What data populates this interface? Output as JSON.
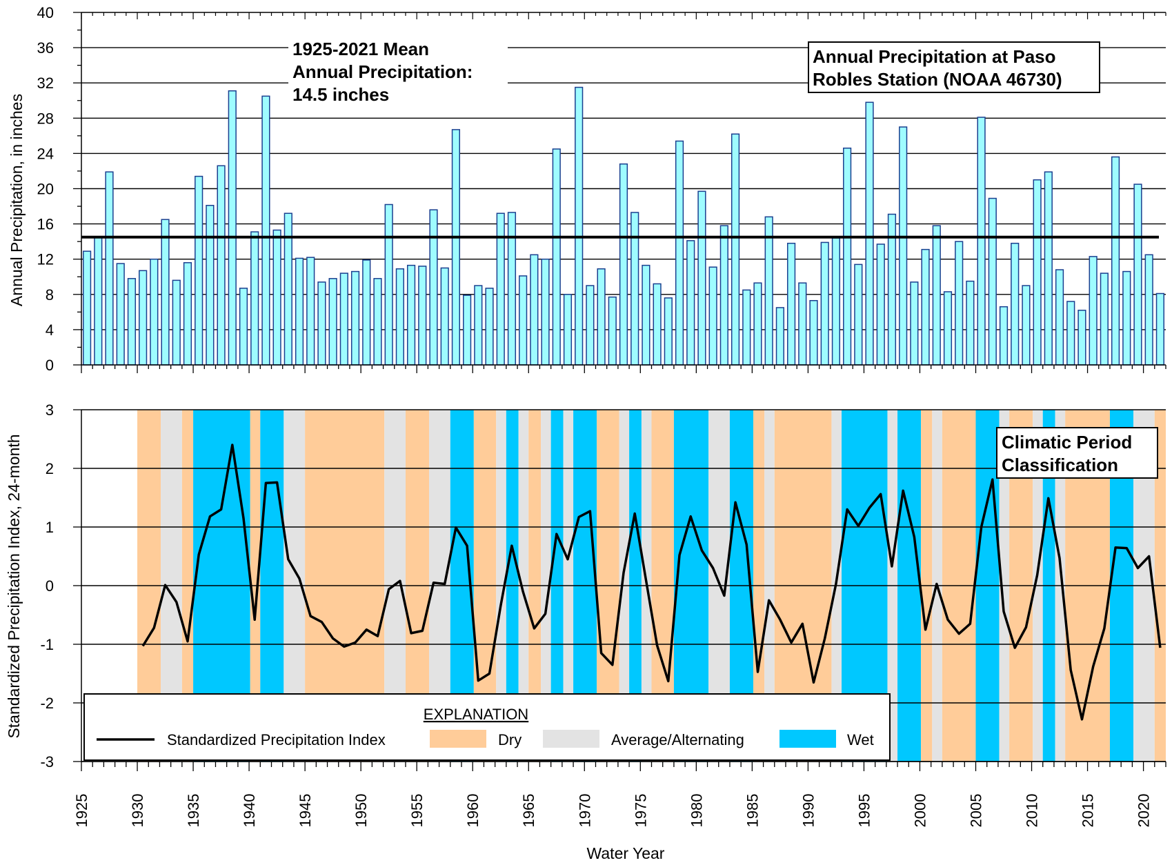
{
  "colors": {
    "bar_fill": "#9ffcff",
    "bar_stroke": "#1a3f8f",
    "mean_line": "#000000",
    "dry": "#ffcc99",
    "average": "#e3e3e3",
    "wet": "#00c8ff",
    "spi_line": "#000000"
  },
  "xlabel": "Water Year",
  "chart_data": [
    {
      "type": "bar",
      "title": "Annual Precipitation at Paso Robles Station (NOAA 46730)",
      "title_lines": [
        "Annual Precipitation at Paso",
        "Robles Station (NOAA 46730)"
      ],
      "ylabel": "Annual Precipitation, in inches",
      "ylim": [
        0,
        40
      ],
      "yticks": [
        0,
        4,
        8,
        12,
        16,
        20,
        24,
        28,
        32,
        36,
        40
      ],
      "grid": true,
      "x": [
        1925,
        1926,
        1927,
        1928,
        1929,
        1930,
        1931,
        1932,
        1933,
        1934,
        1935,
        1936,
        1937,
        1938,
        1939,
        1940,
        1941,
        1942,
        1943,
        1944,
        1945,
        1946,
        1947,
        1948,
        1949,
        1950,
        1951,
        1952,
        1953,
        1954,
        1955,
        1956,
        1957,
        1958,
        1959,
        1960,
        1961,
        1962,
        1963,
        1964,
        1965,
        1966,
        1967,
        1968,
        1969,
        1970,
        1971,
        1972,
        1973,
        1974,
        1975,
        1976,
        1977,
        1978,
        1979,
        1980,
        1981,
        1982,
        1983,
        1984,
        1985,
        1986,
        1987,
        1988,
        1989,
        1990,
        1991,
        1992,
        1993,
        1994,
        1995,
        1996,
        1997,
        1998,
        1999,
        2000,
        2001,
        2002,
        2003,
        2004,
        2005,
        2006,
        2007,
        2008,
        2009,
        2010,
        2011,
        2012,
        2013,
        2014,
        2015,
        2016,
        2017,
        2018,
        2019,
        2020,
        2021
      ],
      "values": [
        12.9,
        14.5,
        21.9,
        11.5,
        9.8,
        10.7,
        12.0,
        16.5,
        9.6,
        11.6,
        21.4,
        18.1,
        22.6,
        31.1,
        8.7,
        15.1,
        30.5,
        15.3,
        17.2,
        12.1,
        12.2,
        9.4,
        9.8,
        10.4,
        10.6,
        11.9,
        9.8,
        18.2,
        10.9,
        11.3,
        11.2,
        17.6,
        11.0,
        26.7,
        7.9,
        9.0,
        8.7,
        17.2,
        17.3,
        10.1,
        12.5,
        12.0,
        24.5,
        8.0,
        31.5,
        9.0,
        10.9,
        7.7,
        22.8,
        17.3,
        11.3,
        9.2,
        7.6,
        25.4,
        14.1,
        19.7,
        11.1,
        15.8,
        26.2,
        8.5,
        9.3,
        16.8,
        6.5,
        13.8,
        9.3,
        7.3,
        13.9,
        14.4,
        24.6,
        11.4,
        29.8,
        13.7,
        17.1,
        27.0,
        9.4,
        13.1,
        15.8,
        8.3,
        14.0,
        9.5,
        28.1,
        18.9,
        6.6,
        13.8,
        9.0,
        21.0,
        21.9,
        10.8,
        7.2,
        6.2,
        12.3,
        10.4,
        23.6,
        10.6,
        20.5,
        12.5,
        8.1
      ],
      "mean": 14.5,
      "annotation": [
        "1925-2021 Mean",
        "Annual Precipitation:",
        "14.5 inches"
      ]
    },
    {
      "type": "line",
      "title": "Climatic Period Classification",
      "title_lines": [
        "Climatic Period",
        "Classification"
      ],
      "ylabel": "Standardized Precipitation Index, 24-month",
      "ylim": [
        -3,
        3
      ],
      "yticks": [
        -3,
        -2,
        -1,
        0,
        1,
        2,
        3
      ],
      "grid": true,
      "xlim": [
        1925,
        2022
      ],
      "xticks": [
        1925,
        1930,
        1935,
        1940,
        1945,
        1950,
        1955,
        1960,
        1965,
        1970,
        1975,
        1980,
        1985,
        1990,
        1995,
        2000,
        2005,
        2010,
        2015,
        2020
      ],
      "series": [
        {
          "name": "Standardized Precipitation Index",
          "x": [
            1930.5,
            1931.5,
            1932.5,
            1933.5,
            1934.5,
            1935.5,
            1936.5,
            1937.5,
            1938.5,
            1939.5,
            1940.5,
            1941.5,
            1942.5,
            1943.5,
            1944.5,
            1945.5,
            1946.5,
            1947.5,
            1948.5,
            1949.5,
            1950.5,
            1951.5,
            1952.5,
            1953.5,
            1954.5,
            1955.5,
            1956.5,
            1957.5,
            1958.5,
            1959.5,
            1960.5,
            1961.5,
            1962.5,
            1963.5,
            1964.5,
            1965.5,
            1966.5,
            1967.5,
            1968.5,
            1969.5,
            1970.5,
            1971.5,
            1972.5,
            1973.5,
            1974.5,
            1975.5,
            1976.5,
            1977.5,
            1978.5,
            1979.5,
            1980.5,
            1981.5,
            1982.5,
            1983.5,
            1984.5,
            1985.5,
            1986.5,
            1987.5,
            1988.5,
            1989.5,
            1990.5,
            1991.5,
            1992.5,
            1993.5,
            1994.5,
            1995.5,
            1996.5,
            1997.5,
            1998.5,
            1999.5,
            2000.5,
            2001.5,
            2002.5,
            2003.5,
            2004.5,
            2005.5,
            2006.5,
            2007.5,
            2008.5,
            2009.5,
            2010.5,
            2011.5,
            2012.5,
            2013.5,
            2014.5,
            2015.5,
            2016.5,
            2017.5,
            2018.5,
            2019.5,
            2020.5,
            2021.5
          ],
          "values": [
            -1.03,
            -0.72,
            0.01,
            -0.28,
            -0.95,
            0.53,
            1.18,
            1.3,
            2.4,
            1.15,
            -0.58,
            1.75,
            1.76,
            0.45,
            0.12,
            -0.52,
            -0.62,
            -0.9,
            -1.04,
            -0.97,
            -0.75,
            -0.86,
            -0.06,
            0.08,
            -0.81,
            -0.77,
            0.05,
            0.03,
            0.99,
            0.68,
            -1.62,
            -1.5,
            -0.35,
            0.68,
            -0.1,
            -0.73,
            -0.48,
            0.88,
            0.45,
            1.17,
            1.27,
            -1.15,
            -1.35,
            0.22,
            1.23,
            0.1,
            -1.02,
            -1.63,
            0.52,
            1.18,
            0.6,
            0.3,
            -0.17,
            1.42,
            0.7,
            -1.47,
            -0.25,
            -0.58,
            -0.97,
            -0.65,
            -1.65,
            -0.9,
            0.03,
            1.3,
            1.02,
            1.33,
            1.56,
            0.33,
            1.62,
            0.83,
            -0.75,
            0.03,
            -0.58,
            -0.82,
            -0.65,
            1.0,
            1.81,
            -0.44,
            -1.06,
            -0.71,
            0.18,
            1.49,
            0.47,
            -1.44,
            -2.28,
            -1.38,
            -0.73,
            0.65,
            0.64,
            0.3,
            0.5,
            -1.06
          ]
        }
      ],
      "periods": [
        {
          "start": 1930.0,
          "end": 1932.1,
          "class": "Dry"
        },
        {
          "start": 1932.1,
          "end": 1934.0,
          "class": "Average/Alternating"
        },
        {
          "start": 1934.0,
          "end": 1935.0,
          "class": "Dry"
        },
        {
          "start": 1935.0,
          "end": 1940.1,
          "class": "Wet"
        },
        {
          "start": 1940.1,
          "end": 1941.0,
          "class": "Dry"
        },
        {
          "start": 1941.0,
          "end": 1943.1,
          "class": "Wet"
        },
        {
          "start": 1943.1,
          "end": 1945.0,
          "class": "Average/Alternating"
        },
        {
          "start": 1945.0,
          "end": 1952.1,
          "class": "Dry"
        },
        {
          "start": 1952.1,
          "end": 1954.0,
          "class": "Average/Alternating"
        },
        {
          "start": 1954.0,
          "end": 1956.1,
          "class": "Dry"
        },
        {
          "start": 1956.1,
          "end": 1958.0,
          "class": "Average/Alternating"
        },
        {
          "start": 1958.0,
          "end": 1960.1,
          "class": "Wet"
        },
        {
          "start": 1960.1,
          "end": 1962.1,
          "class": "Dry"
        },
        {
          "start": 1962.1,
          "end": 1963.0,
          "class": "Average/Alternating"
        },
        {
          "start": 1963.0,
          "end": 1964.1,
          "class": "Wet"
        },
        {
          "start": 1964.1,
          "end": 1965.0,
          "class": "Average/Alternating"
        },
        {
          "start": 1965.0,
          "end": 1966.1,
          "class": "Dry"
        },
        {
          "start": 1966.1,
          "end": 1967.0,
          "class": "Average/Alternating"
        },
        {
          "start": 1967.0,
          "end": 1968.1,
          "class": "Wet"
        },
        {
          "start": 1968.1,
          "end": 1969.0,
          "class": "Average/Alternating"
        },
        {
          "start": 1969.0,
          "end": 1971.1,
          "class": "Wet"
        },
        {
          "start": 1971.1,
          "end": 1973.1,
          "class": "Dry"
        },
        {
          "start": 1973.1,
          "end": 1974.0,
          "class": "Average/Alternating"
        },
        {
          "start": 1974.0,
          "end": 1975.1,
          "class": "Wet"
        },
        {
          "start": 1975.1,
          "end": 1976.0,
          "class": "Average/Alternating"
        },
        {
          "start": 1976.0,
          "end": 1978.0,
          "class": "Dry"
        },
        {
          "start": 1978.0,
          "end": 1981.1,
          "class": "Wet"
        },
        {
          "start": 1981.1,
          "end": 1983.0,
          "class": "Average/Alternating"
        },
        {
          "start": 1983.0,
          "end": 1985.1,
          "class": "Wet"
        },
        {
          "start": 1985.1,
          "end": 1986.1,
          "class": "Dry"
        },
        {
          "start": 1986.1,
          "end": 1987.0,
          "class": "Average/Alternating"
        },
        {
          "start": 1987.0,
          "end": 1992.1,
          "class": "Dry"
        },
        {
          "start": 1992.1,
          "end": 1993.0,
          "class": "Average/Alternating"
        },
        {
          "start": 1993.0,
          "end": 1997.1,
          "class": "Wet"
        },
        {
          "start": 1997.1,
          "end": 1998.0,
          "class": "Average/Alternating"
        },
        {
          "start": 1998.0,
          "end": 2000.1,
          "class": "Wet"
        },
        {
          "start": 2000.1,
          "end": 2001.1,
          "class": "Dry"
        },
        {
          "start": 2001.1,
          "end": 2002.0,
          "class": "Average/Alternating"
        },
        {
          "start": 2002.0,
          "end": 2005.0,
          "class": "Dry"
        },
        {
          "start": 2005.0,
          "end": 2007.1,
          "class": "Wet"
        },
        {
          "start": 2007.1,
          "end": 2008.0,
          "class": "Average/Alternating"
        },
        {
          "start": 2008.0,
          "end": 2010.1,
          "class": "Dry"
        },
        {
          "start": 2010.1,
          "end": 2011.0,
          "class": "Average/Alternating"
        },
        {
          "start": 2011.0,
          "end": 2012.1,
          "class": "Wet"
        },
        {
          "start": 2012.1,
          "end": 2013.0,
          "class": "Average/Alternating"
        },
        {
          "start": 2013.0,
          "end": 2017.0,
          "class": "Dry"
        },
        {
          "start": 2017.0,
          "end": 2019.1,
          "class": "Wet"
        },
        {
          "start": 2019.1,
          "end": 2021.0,
          "class": "Average/Alternating"
        },
        {
          "start": 2021.0,
          "end": 2022.0,
          "class": "Dry"
        }
      ],
      "legend": {
        "title": "EXPLANATION",
        "placement": "bottom-left",
        "items": [
          {
            "label": "Standardized Precipitation Index",
            "kind": "line"
          },
          {
            "label": "Dry",
            "kind": "patch",
            "class": "Dry"
          },
          {
            "label": "Average/Alternating",
            "kind": "patch",
            "class": "Average/Alternating"
          },
          {
            "label": "Wet",
            "kind": "patch",
            "class": "Wet"
          }
        ]
      }
    }
  ]
}
